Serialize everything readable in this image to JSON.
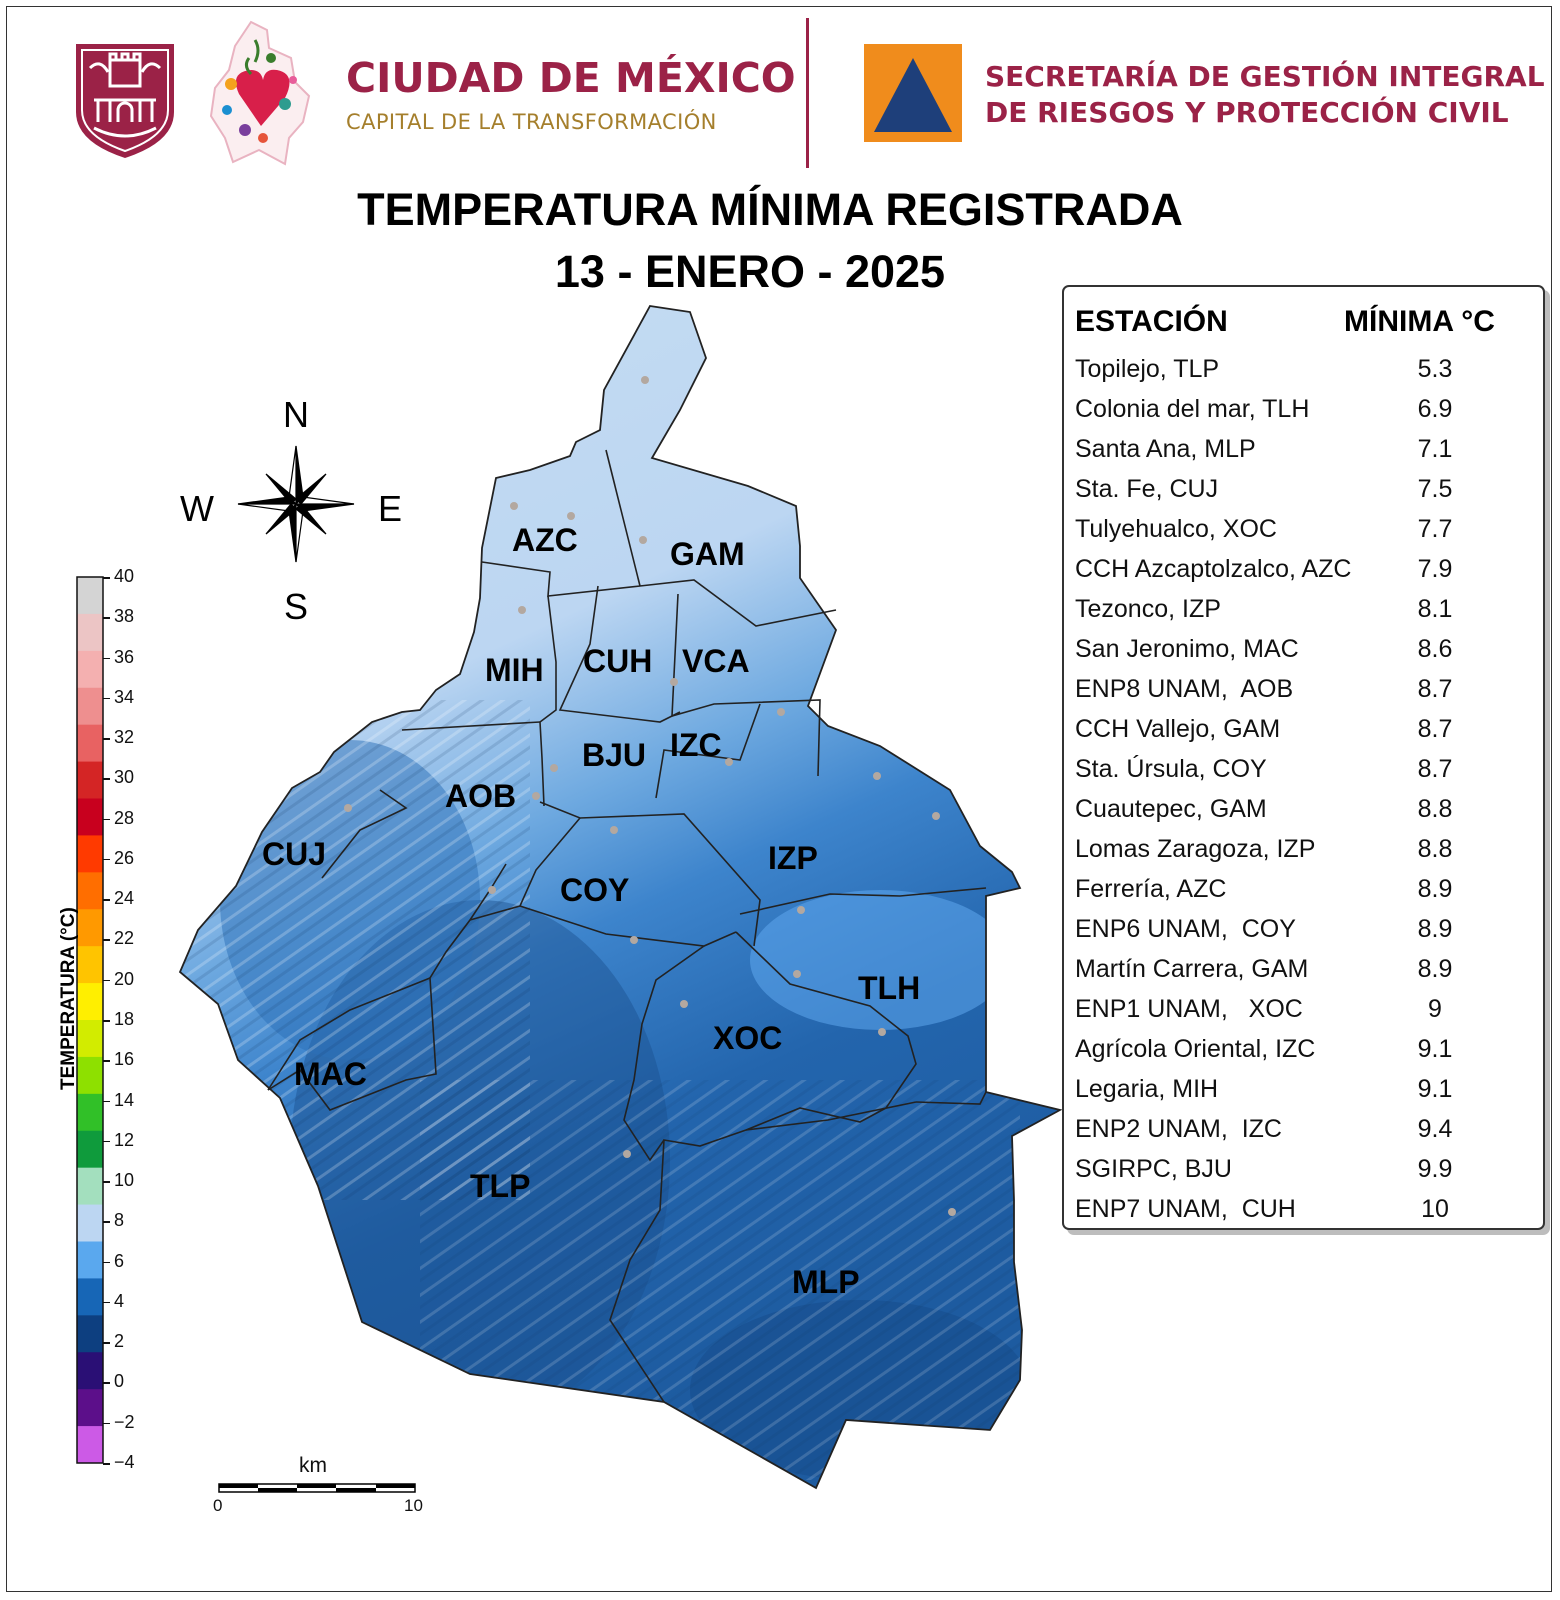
{
  "header": {
    "city_name": "CIUDAD DE MÉXICO",
    "city_slogan": "CAPITAL DE LA TRANSFORMACIÓN",
    "agency_line1": "SECRETARÍA DE GESTIÓN INTEGRAL",
    "agency_line2": "DE RIESGOS Y PROTECCIÓN CIVIL",
    "colors": {
      "brand_maroon": "#9b2247",
      "brand_gold": "#a57f2c",
      "pc_orange": "#f08c1c",
      "pc_blue": "#1e3f7a"
    }
  },
  "title": {
    "line1": "TEMPERATURA MÍNIMA REGISTRADA",
    "line2": "13 - ENERO - 2025"
  },
  "compass": {
    "n": "N",
    "s": "S",
    "e": "E",
    "w": "W"
  },
  "colorbar": {
    "title": "TEMPERATURA (°C)",
    "ticks": [
      "40",
      "38",
      "36",
      "34",
      "32",
      "30",
      "28",
      "26",
      "24",
      "22",
      "20",
      "18",
      "16",
      "14",
      "12",
      "10",
      "8",
      "6",
      "4",
      "2",
      "0",
      "−2",
      "−4"
    ],
    "colors": [
      "#d4d4d4",
      "#ecc5c5",
      "#f4b0b0",
      "#ee8f8f",
      "#e86262",
      "#d42525",
      "#c8001e",
      "#ff3a00",
      "#ff6e00",
      "#ff9900",
      "#ffc400",
      "#ffef00",
      "#d2ec00",
      "#8ee000",
      "#31c028",
      "#0f9b3c",
      "#a3dfbe",
      "#bcd6f2",
      "#5aa8ee",
      "#1766b6",
      "#0d3f80",
      "#2a0f75",
      "#5c0f8a",
      "#cc5ae6"
    ]
  },
  "scale_bar": {
    "unit": "km",
    "start": "0",
    "end": "10"
  },
  "districts": [
    "AZC",
    "GAM",
    "MIH",
    "CUH",
    "VCA",
    "BJU",
    "IZC",
    "AOB",
    "CUJ",
    "COY",
    "IZP",
    "TLH",
    "XOC",
    "MAC",
    "TLP",
    "MLP"
  ],
  "legend": {
    "col_station": "ESTACIÓN",
    "col_min": "MÍNIMA °C",
    "rows": [
      {
        "station": "Topilejo, TLP",
        "min": "5.3"
      },
      {
        "station": "Colonia del mar, TLH",
        "min": "6.9"
      },
      {
        "station": "Santa Ana, MLP",
        "min": "7.1"
      },
      {
        "station": "Sta. Fe, CUJ",
        "min": "7.5"
      },
      {
        "station": "Tulyehualco, XOC",
        "min": "7.7"
      },
      {
        "station": "CCH Azcaptolzalco, AZC",
        "min": "7.9"
      },
      {
        "station": "Tezonco, IZP",
        "min": "8.1"
      },
      {
        "station": "San Jeronimo, MAC",
        "min": "8.6"
      },
      {
        "station": "ENP8 UNAM,  AOB",
        "min": "8.7"
      },
      {
        "station": "CCH Vallejo, GAM",
        "min": "8.7"
      },
      {
        "station": "Sta. Úrsula, COY",
        "min": "8.7"
      },
      {
        "station": "Cuautepec, GAM",
        "min": "8.8"
      },
      {
        "station": "Lomas Zaragoza, IZP",
        "min": "8.8"
      },
      {
        "station": "Ferrería, AZC",
        "min": "8.9"
      },
      {
        "station": "ENP6 UNAM,  COY",
        "min": "8.9"
      },
      {
        "station": "Martín Carrera, GAM",
        "min": "8.9"
      },
      {
        "station": "ENP1 UNAM,   XOC",
        "min": "9"
      },
      {
        "station": "Agrícola Oriental, IZC",
        "min": "9.1"
      },
      {
        "station": "Legaria, MIH",
        "min": "9.1"
      },
      {
        "station": "ENP2 UNAM,  IZC",
        "min": "9.4"
      },
      {
        "station": "SGIRPC, BJU",
        "min": "9.9"
      },
      {
        "station": "ENP7 UNAM,  CUH",
        "min": "10"
      }
    ]
  }
}
